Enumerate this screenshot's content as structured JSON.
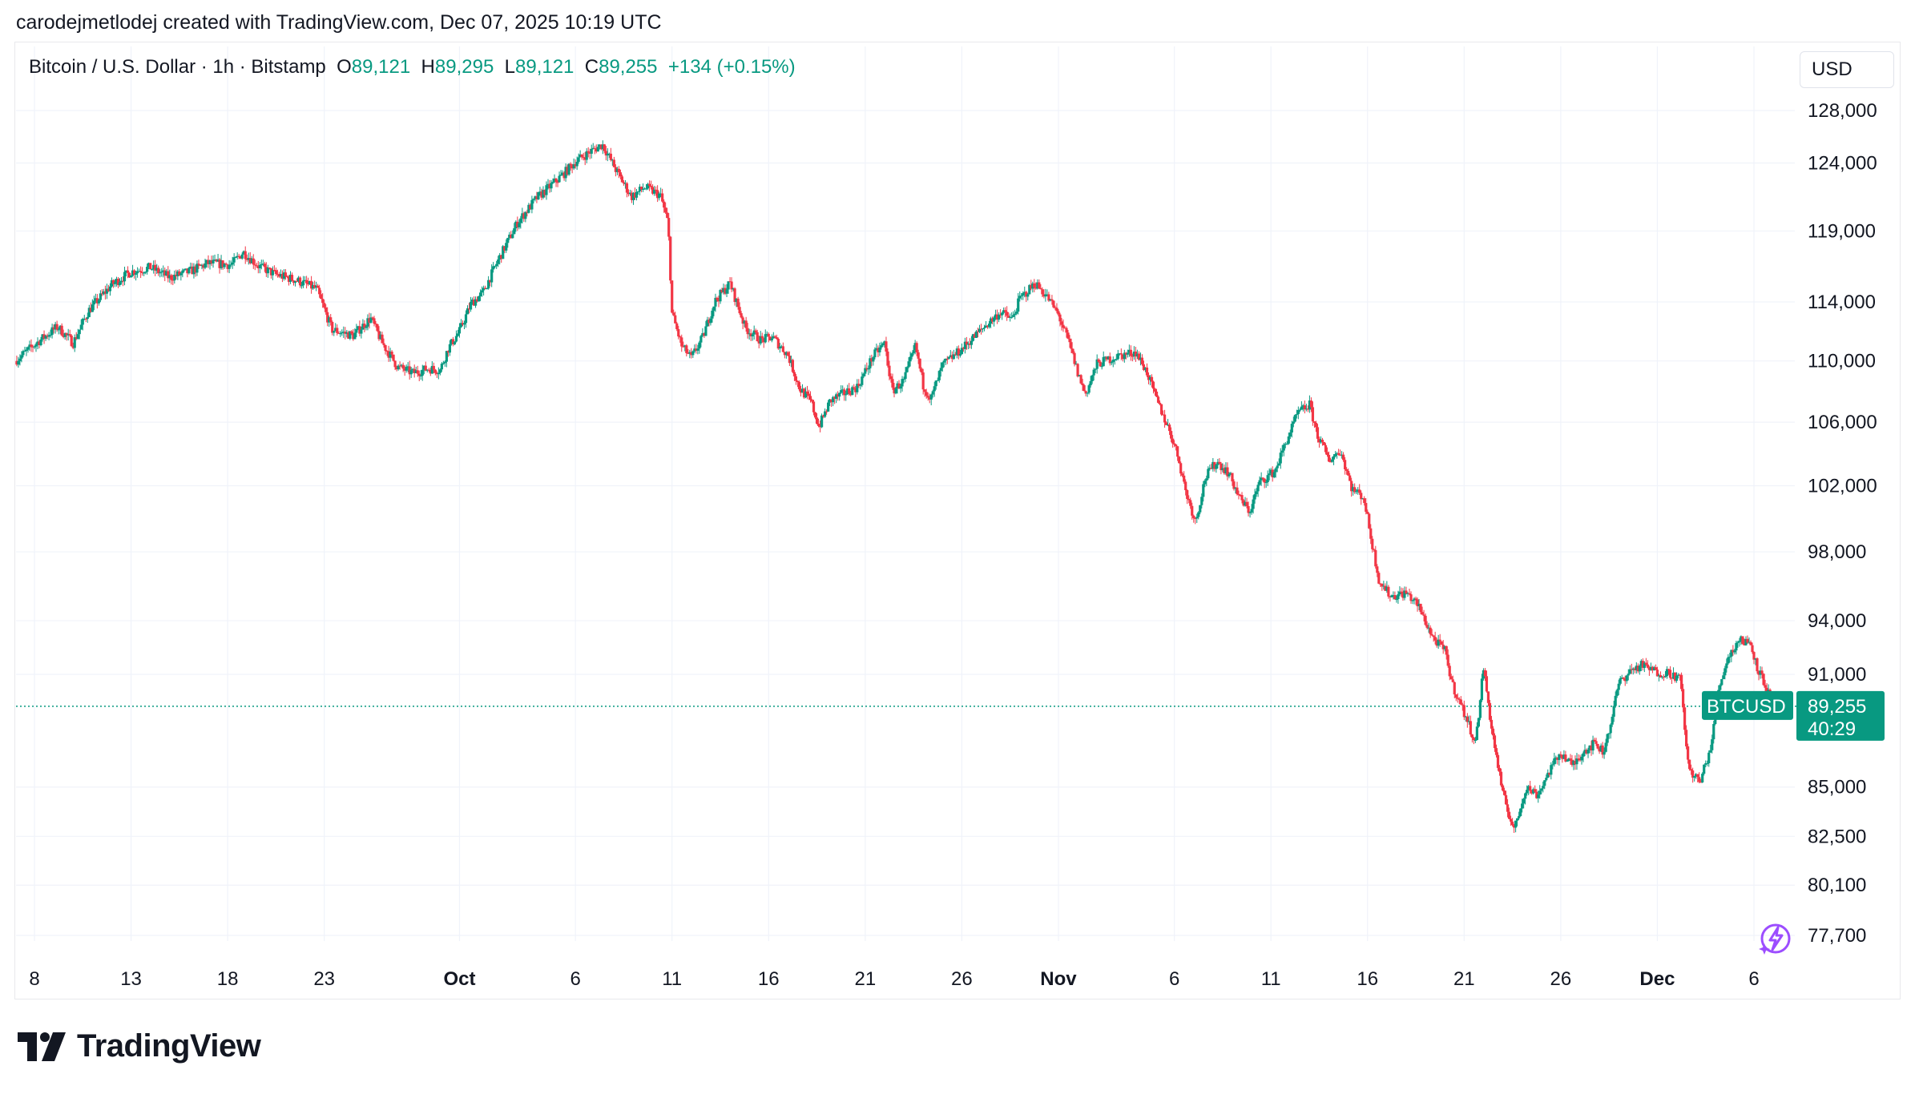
{
  "caption": "carodejmetlodej created with TradingView.com, Dec 07, 2025 10:19 UTC",
  "legend": {
    "symbol": "Bitcoin / U.S. Dollar · 1h · Bitstamp",
    "open_label": "O",
    "open": "89,121",
    "high_label": "H",
    "high": "89,295",
    "low_label": "L",
    "low": "89,121",
    "close_label": "C",
    "close": "89,255",
    "change": "+134 (+0.15%)"
  },
  "currency": "USD",
  "price_tag": {
    "symbol": "BTCUSD",
    "price": "89,255",
    "countdown": "40:29"
  },
  "brand": "TradingView",
  "colors": {
    "up": "#089981",
    "down": "#f23645",
    "grid": "#f0f3fa",
    "text": "#131722"
  },
  "chart_data": {
    "type": "candlestick",
    "symbol": "BTCUSD",
    "interval": "1h",
    "exchange": "Bitstamp",
    "x_tick_labels": [
      "8",
      "13",
      "18",
      "23",
      "Oct",
      "6",
      "11",
      "16",
      "21",
      "26",
      "Nov",
      "6",
      "11",
      "16",
      "21",
      "26",
      "Dec",
      "6"
    ],
    "x_tick_days": [
      8,
      13,
      18,
      23,
      30,
      36,
      41,
      46,
      51,
      56,
      61,
      67,
      72,
      77,
      82,
      87,
      92,
      97
    ],
    "x_tick_bold": [
      false,
      false,
      false,
      false,
      true,
      false,
      false,
      false,
      false,
      false,
      true,
      false,
      false,
      false,
      false,
      false,
      true,
      false
    ],
    "y_tick_labels": [
      "128,000",
      "124,000",
      "119,000",
      "114,000",
      "110,000",
      "106,000",
      "102,000",
      "98,000",
      "94,000",
      "91,000",
      "85,000",
      "82,500",
      "80,100",
      "77,700"
    ],
    "y_tick_values": [
      128000,
      124000,
      119000,
      114000,
      110000,
      106000,
      102000,
      98000,
      94000,
      91000,
      85000,
      82500,
      80100,
      77700
    ],
    "y_scale": "log",
    "ylim": [
      76700,
      131000
    ],
    "xlim_day": [
      7,
      99.2
    ],
    "last_price": 89255,
    "price_path": [
      [
        7.0,
        110000
      ],
      [
        8.2,
        111300
      ],
      [
        9.2,
        112300
      ],
      [
        10.0,
        111200
      ],
      [
        10.8,
        113400
      ],
      [
        12.0,
        115200
      ],
      [
        13.0,
        116100
      ],
      [
        14.0,
        116400
      ],
      [
        15.0,
        115700
      ],
      [
        16.0,
        116100
      ],
      [
        17.0,
        116700
      ],
      [
        18.2,
        116600
      ],
      [
        18.8,
        117500
      ],
      [
        19.6,
        116500
      ],
      [
        20.5,
        115900
      ],
      [
        21.6,
        115500
      ],
      [
        22.6,
        114900
      ],
      [
        23.4,
        112100
      ],
      [
        24.5,
        111700
      ],
      [
        25.4,
        112900
      ],
      [
        26.0,
        111200
      ],
      [
        26.8,
        109600
      ],
      [
        27.6,
        109200
      ],
      [
        28.4,
        109500
      ],
      [
        29.0,
        109400
      ],
      [
        29.4,
        110800
      ],
      [
        30.0,
        112000
      ],
      [
        30.6,
        113900
      ],
      [
        31.2,
        114600
      ],
      [
        32.0,
        116900
      ],
      [
        33.0,
        119600
      ],
      [
        34.0,
        121400
      ],
      [
        34.8,
        122400
      ],
      [
        35.4,
        123200
      ],
      [
        36.0,
        124100
      ],
      [
        36.6,
        124700
      ],
      [
        37.4,
        125400
      ],
      [
        38.2,
        123200
      ],
      [
        38.9,
        121500
      ],
      [
        39.6,
        122200
      ],
      [
        40.4,
        121600
      ],
      [
        40.8,
        119500
      ],
      [
        41.0,
        113200
      ],
      [
        41.5,
        111000
      ],
      [
        42.0,
        110200
      ],
      [
        42.6,
        111600
      ],
      [
        43.2,
        114000
      ],
      [
        44.0,
        115300
      ],
      [
        44.8,
        112200
      ],
      [
        45.6,
        111400
      ],
      [
        46.2,
        111600
      ],
      [
        47.0,
        110400
      ],
      [
        47.6,
        108200
      ],
      [
        48.2,
        107300
      ],
      [
        48.6,
        105700
      ],
      [
        49.2,
        107400
      ],
      [
        49.8,
        107800
      ],
      [
        50.6,
        108300
      ],
      [
        51.4,
        110300
      ],
      [
        52.0,
        111200
      ],
      [
        52.4,
        108000
      ],
      [
        53.0,
        108700
      ],
      [
        53.6,
        111000
      ],
      [
        54.0,
        108400
      ],
      [
        54.4,
        107500
      ],
      [
        55.0,
        109700
      ],
      [
        56.0,
        110800
      ],
      [
        57.0,
        112100
      ],
      [
        58.0,
        113300
      ],
      [
        58.6,
        112800
      ],
      [
        59.0,
        114200
      ],
      [
        59.8,
        115300
      ],
      [
        60.4,
        114400
      ],
      [
        61.0,
        113100
      ],
      [
        61.6,
        111000
      ],
      [
        62.0,
        109200
      ],
      [
        62.4,
        107800
      ],
      [
        63.0,
        109800
      ],
      [
        64.0,
        110300
      ],
      [
        65.0,
        110600
      ],
      [
        65.6,
        109200
      ],
      [
        66.0,
        107700
      ],
      [
        66.8,
        105300
      ],
      [
        67.2,
        103800
      ],
      [
        67.6,
        101600
      ],
      [
        68.1,
        99800
      ],
      [
        68.6,
        102500
      ],
      [
        69.2,
        103500
      ],
      [
        69.8,
        102800
      ],
      [
        70.4,
        101200
      ],
      [
        70.9,
        100400
      ],
      [
        71.4,
        102200
      ],
      [
        72.2,
        102900
      ],
      [
        72.8,
        104800
      ],
      [
        73.4,
        106600
      ],
      [
        74.0,
        107100
      ],
      [
        74.4,
        105200
      ],
      [
        75.0,
        103600
      ],
      [
        75.6,
        104200
      ],
      [
        76.2,
        101800
      ],
      [
        76.8,
        101300
      ],
      [
        77.2,
        98700
      ],
      [
        77.6,
        96300
      ],
      [
        78.2,
        95400
      ],
      [
        79.0,
        95600
      ],
      [
        79.6,
        94900
      ],
      [
        80.4,
        93000
      ],
      [
        81.0,
        92300
      ],
      [
        81.4,
        90400
      ],
      [
        82.0,
        88900
      ],
      [
        82.6,
        87300
      ],
      [
        83.0,
        91400
      ],
      [
        83.4,
        88200
      ],
      [
        84.0,
        84600
      ],
      [
        84.6,
        82800
      ],
      [
        85.2,
        85000
      ],
      [
        85.8,
        84600
      ],
      [
        86.4,
        85800
      ],
      [
        87.0,
        86800
      ],
      [
        87.6,
        86100
      ],
      [
        88.2,
        86900
      ],
      [
        88.8,
        87300
      ],
      [
        89.2,
        86800
      ],
      [
        89.6,
        88400
      ],
      [
        90.0,
        90500
      ],
      [
        90.6,
        91200
      ],
      [
        91.2,
        91500
      ],
      [
        92.0,
        91100
      ],
      [
        92.6,
        91100
      ],
      [
        93.2,
        90700
      ],
      [
        93.6,
        86000
      ],
      [
        94.2,
        85200
      ],
      [
        94.8,
        87200
      ],
      [
        95.2,
        90300
      ],
      [
        95.6,
        91800
      ],
      [
        96.2,
        92900
      ],
      [
        96.8,
        92800
      ],
      [
        97.2,
        91300
      ],
      [
        97.6,
        90400
      ],
      [
        98.0,
        89200
      ],
      [
        98.6,
        89300
      ],
      [
        98.9,
        89255
      ]
    ]
  }
}
